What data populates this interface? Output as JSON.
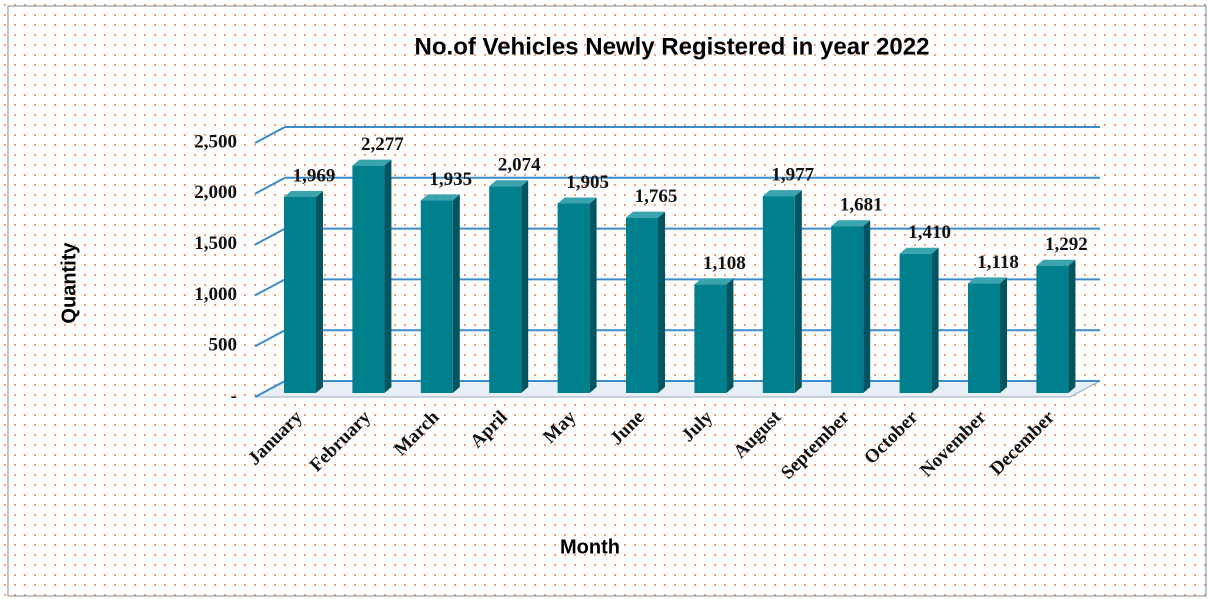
{
  "chart_data": {
    "type": "bar3d",
    "title": "No.of Vehicles Newly Registered in year 2022",
    "x_label": "Month",
    "y_label": "Quantity",
    "categories": [
      "January",
      "February",
      "March",
      "April",
      "May",
      "June",
      "July",
      "August",
      "September",
      "October",
      "November",
      "December"
    ],
    "values": [
      1969,
      2277,
      1935,
      2074,
      1905,
      1765,
      1108,
      1977,
      1681,
      1410,
      1118,
      1292
    ],
    "value_labels": [
      "1,969",
      "2,277",
      "1,935",
      "2,074",
      "1,905",
      "1,765",
      "1,108",
      "1,977",
      "1,681",
      "1,410",
      "1,118",
      "1,292"
    ],
    "color": "#007f8c",
    "ylim": [
      0,
      2500
    ],
    "yticks": [
      {
        "value": 0,
        "label": "-"
      },
      500,
      {
        "value": 1000,
        "label": "1,000"
      },
      {
        "value": 1500,
        "label": "1,500"
      },
      {
        "value": 2000,
        "label": "2,000"
      },
      {
        "value": 2500,
        "label": "2,500"
      }
    ],
    "grid": true
  }
}
